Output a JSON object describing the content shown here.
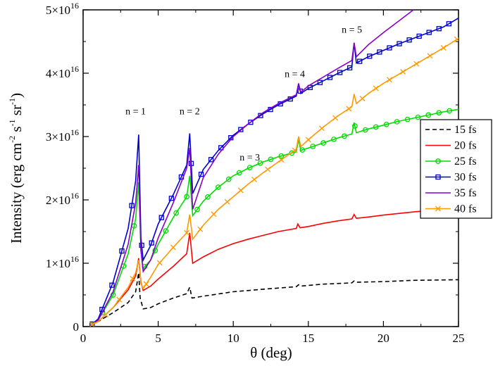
{
  "chart_data": {
    "type": "line",
    "title": "",
    "xlabel": "θ (deg)",
    "ylabel": {
      "main": "Intensity (erg cm",
      "e1": "-2",
      "p1": " s",
      "e2": "-1",
      "p2": " sr",
      "e3": "-1",
      "close": ")"
    },
    "xlim": [
      0,
      25
    ],
    "ylim": [
      0,
      5e+16
    ],
    "x_ticks": [
      0,
      5,
      10,
      15,
      20,
      25
    ],
    "y_ticks": [
      {
        "value": 0,
        "label": "0",
        "exp": ""
      },
      {
        "value": 1e+16,
        "label": "1×10",
        "exp": "16"
      },
      {
        "value": 2e+16,
        "label": "2×10",
        "exp": "16"
      },
      {
        "value": 3e+16,
        "label": "3×10",
        "exp": "16"
      },
      {
        "value": 4e+16,
        "label": "4×10",
        "exp": "16"
      },
      {
        "value": 5e+16,
        "label": "5×10",
        "exp": "16"
      }
    ],
    "legend_position": "right",
    "grid": false,
    "annotations": [
      {
        "text": "n = 1",
        "x": 3.5,
        "y": 3.35e+16
      },
      {
        "text": "n = 2",
        "x": 7.1,
        "y": 3.35e+16
      },
      {
        "text": "n = 3",
        "x": 11.1,
        "y": 2.62e+16
      },
      {
        "text": "n = 4",
        "x": 14.1,
        "y": 3.94e+16
      },
      {
        "text": "n = 5",
        "x": 17.9,
        "y": 4.64e+16
      }
    ],
    "series": [
      {
        "name": "15 fs",
        "color": "#000000",
        "dash": "6,4",
        "marker": "none",
        "points": [
          [
            0.5,
            200000000000000.0
          ],
          [
            1,
            800000000000000.0
          ],
          [
            2,
            2200000000000000.0
          ],
          [
            3,
            3800000000000000.0
          ],
          [
            3.5,
            5500000000000000.0
          ],
          [
            3.7,
            8500000000000000.0
          ],
          [
            3.8,
            4500000000000000.0
          ],
          [
            4,
            2800000000000000.0
          ],
          [
            4.5,
            3000000000000000.0
          ],
          [
            5,
            3600000000000000.0
          ],
          [
            6,
            4500000000000000.0
          ],
          [
            6.9,
            5200000000000000.0
          ],
          [
            7.1,
            6200000000000000.0
          ],
          [
            7.25,
            4500000000000000.0
          ],
          [
            8,
            4800000000000000.0
          ],
          [
            10,
            5500000000000000.0
          ],
          [
            12,
            5900000000000000.0
          ],
          [
            14.2,
            6300000000000000.0
          ],
          [
            14.35,
            6600000000000000.0
          ],
          [
            14.5,
            6400000000000000.0
          ],
          [
            16,
            6700000000000000.0
          ],
          [
            17.9,
            6900000000000000.0
          ],
          [
            18.05,
            7200000000000000.0
          ],
          [
            18.2,
            7000000000000000.0
          ],
          [
            20,
            7100000000000000.0
          ],
          [
            22,
            7300000000000000.0
          ],
          [
            25,
            7400000000000000.0
          ]
        ]
      },
      {
        "name": "20 fs",
        "color": "#ff0000",
        "dash": "",
        "marker": "none",
        "points": [
          [
            0.5,
            200000000000000.0
          ],
          [
            1,
            800000000000000.0
          ],
          [
            2,
            3000000000000000.0
          ],
          [
            3,
            5800000000000000.0
          ],
          [
            3.5,
            8000000000000000.0
          ],
          [
            3.7,
            1.08e+16
          ],
          [
            3.85,
            7000000000000000.0
          ],
          [
            4,
            5700000000000000.0
          ],
          [
            4.5,
            6400000000000000.0
          ],
          [
            5,
            7500000000000000.0
          ],
          [
            6,
            9500000000000000.0
          ],
          [
            6.9,
            1.15e+16
          ],
          [
            7.1,
            1.48e+16
          ],
          [
            7.3,
            1e+16
          ],
          [
            8,
            1.1e+16
          ],
          [
            9,
            1.22e+16
          ],
          [
            10,
            1.31e+16
          ],
          [
            11,
            1.38e+16
          ],
          [
            12,
            1.44e+16
          ],
          [
            13,
            1.5e+16
          ],
          [
            14.2,
            1.55e+16
          ],
          [
            14.3,
            1.62e+16
          ],
          [
            14.45,
            1.56e+16
          ],
          [
            15,
            1.58e+16
          ],
          [
            16,
            1.63e+16
          ],
          [
            17,
            1.67e+16
          ],
          [
            17.9,
            1.7e+16
          ],
          [
            18.05,
            1.77e+16
          ],
          [
            18.2,
            1.71e+16
          ],
          [
            19,
            1.73e+16
          ],
          [
            20,
            1.76e+16
          ],
          [
            22,
            1.81e+16
          ],
          [
            24,
            1.85e+16
          ],
          [
            25,
            1.87e+16
          ]
        ]
      },
      {
        "name": "25 fs",
        "color": "#00dd00",
        "dash": "",
        "marker": "circle",
        "points": [
          [
            0.5,
            200000000000000.0
          ],
          [
            1,
            1000000000000000.0
          ],
          [
            2,
            5000000000000000.0
          ],
          [
            3,
            1.15e+16
          ],
          [
            3.5,
            1.7e+16
          ],
          [
            3.7,
            2.28e+16
          ],
          [
            3.85,
            1.2e+16
          ],
          [
            4,
            9200000000000000.0
          ],
          [
            4.5,
            1.05e+16
          ],
          [
            5,
            1.3e+16
          ],
          [
            6,
            1.72e+16
          ],
          [
            6.9,
            2.05e+16
          ],
          [
            7.1,
            2.38e+16
          ],
          [
            7.3,
            1.75e+16
          ],
          [
            8,
            1.98e+16
          ],
          [
            9,
            2.2e+16
          ],
          [
            10,
            2.38e+16
          ],
          [
            11,
            2.5e+16
          ],
          [
            12,
            2.6e+16
          ],
          [
            13,
            2.68e+16
          ],
          [
            14.2,
            2.76e+16
          ],
          [
            14.35,
            2.96e+16
          ],
          [
            14.5,
            2.78e+16
          ],
          [
            15,
            2.82e+16
          ],
          [
            16,
            2.9e+16
          ],
          [
            17,
            2.98e+16
          ],
          [
            17.9,
            3.04e+16
          ],
          [
            18.05,
            3.22e+16
          ],
          [
            18.2,
            3.06e+16
          ],
          [
            19,
            3.12e+16
          ],
          [
            20,
            3.18e+16
          ],
          [
            21,
            3.24e+16
          ],
          [
            22,
            3.29e+16
          ],
          [
            23,
            3.34e+16
          ],
          [
            24,
            3.39e+16
          ],
          [
            25,
            3.43e+16
          ]
        ]
      },
      {
        "name": "30 fs",
        "color": "#0000cc",
        "dash": "",
        "marker": "square",
        "points": [
          [
            0.5,
            200000000000000.0
          ],
          [
            1,
            1200000000000000.0
          ],
          [
            2,
            7000000000000000.0
          ],
          [
            3,
            1.55e+16
          ],
          [
            3.5,
            2.3e+16
          ],
          [
            3.7,
            3.03e+16
          ],
          [
            3.85,
            1.4e+16
          ],
          [
            4,
            1.05e+16
          ],
          [
            4.5,
            1.28e+16
          ],
          [
            5,
            1.62e+16
          ],
          [
            6,
            2.08e+16
          ],
          [
            6.9,
            2.55e+16
          ],
          [
            7.1,
            3.05e+16
          ],
          [
            7.3,
            2.1e+16
          ],
          [
            8,
            2.48e+16
          ],
          [
            9,
            2.78e+16
          ],
          [
            10,
            3.02e+16
          ],
          [
            11,
            3.2e+16
          ],
          [
            12,
            3.36e+16
          ],
          [
            13,
            3.5e+16
          ],
          [
            14.2,
            3.64e+16
          ],
          [
            14.35,
            3.82e+16
          ],
          [
            14.5,
            3.68e+16
          ],
          [
            15,
            3.76e+16
          ],
          [
            16,
            3.88e+16
          ],
          [
            17,
            4e+16
          ],
          [
            17.9,
            4.1e+16
          ],
          [
            18.05,
            4.48e+16
          ],
          [
            18.2,
            4.16e+16
          ],
          [
            19,
            4.26e+16
          ],
          [
            20,
            4.36e+16
          ],
          [
            21,
            4.46e+16
          ],
          [
            22,
            4.55e+16
          ],
          [
            23,
            4.64e+16
          ],
          [
            24,
            4.73e+16
          ],
          [
            25,
            4.87e+16
          ]
        ]
      },
      {
        "name": "35 fs",
        "color": "#8800cc",
        "dash": "",
        "marker": "none",
        "points": [
          [
            0.5,
            200000000000000.0
          ],
          [
            1,
            1000000000000000.0
          ],
          [
            2,
            5500000000000000.0
          ],
          [
            3,
            1.3e+16
          ],
          [
            3.5,
            1.95e+16
          ],
          [
            3.7,
            2.55e+16
          ],
          [
            3.85,
            1.2e+16
          ],
          [
            4,
            8700000000000000.0
          ],
          [
            4.5,
            1.05e+16
          ],
          [
            5,
            1.4e+16
          ],
          [
            6,
            1.95e+16
          ],
          [
            6.9,
            2.5e+16
          ],
          [
            7.1,
            2.82e+16
          ],
          [
            7.3,
            1.85e+16
          ],
          [
            8,
            2.35e+16
          ],
          [
            9,
            2.72e+16
          ],
          [
            10,
            3e+16
          ],
          [
            11,
            3.2e+16
          ],
          [
            12,
            3.38e+16
          ],
          [
            13,
            3.52e+16
          ],
          [
            14.2,
            3.66e+16
          ],
          [
            14.35,
            3.84e+16
          ],
          [
            14.5,
            3.7e+16
          ],
          [
            15,
            3.8e+16
          ],
          [
            16,
            3.94e+16
          ],
          [
            17,
            4.08e+16
          ],
          [
            17.9,
            4.2e+16
          ],
          [
            18.05,
            4.48e+16
          ],
          [
            18.2,
            4.26e+16
          ],
          [
            19,
            4.45e+16
          ],
          [
            20,
            4.64e+16
          ],
          [
            21,
            4.82e+16
          ],
          [
            22,
            5e+16
          ]
        ]
      },
      {
        "name": "40 fs",
        "color": "#ff9900",
        "dash": "",
        "marker": "x",
        "points": [
          [
            0.5,
            200000000000000.0
          ],
          [
            1,
            800000000000000.0
          ],
          [
            2,
            3000000000000000.0
          ],
          [
            3,
            6200000000000000.0
          ],
          [
            3.5,
            8500000000000000.0
          ],
          [
            3.7,
            1.05e+16
          ],
          [
            3.85,
            6800000000000000.0
          ],
          [
            4,
            6000000000000000.0
          ],
          [
            4.5,
            7800000000000000.0
          ],
          [
            5,
            9800000000000000.0
          ],
          [
            6,
            1.25e+16
          ],
          [
            6.9,
            1.48e+16
          ],
          [
            7.1,
            1.77e+16
          ],
          [
            7.3,
            1.38e+16
          ],
          [
            8,
            1.6e+16
          ],
          [
            9,
            1.85e+16
          ],
          [
            10,
            2.05e+16
          ],
          [
            11,
            2.25e+16
          ],
          [
            12,
            2.43e+16
          ],
          [
            13,
            2.6e+16
          ],
          [
            14.2,
            2.8e+16
          ],
          [
            14.35,
            3e+16
          ],
          [
            14.5,
            2.84e+16
          ],
          [
            15,
            2.95e+16
          ],
          [
            16,
            3.15e+16
          ],
          [
            17,
            3.33e+16
          ],
          [
            17.9,
            3.47e+16
          ],
          [
            18.05,
            3.67e+16
          ],
          [
            18.2,
            3.52e+16
          ],
          [
            19,
            3.68e+16
          ],
          [
            20,
            3.84e+16
          ],
          [
            21,
            3.98e+16
          ],
          [
            22,
            4.12e+16
          ],
          [
            23,
            4.26e+16
          ],
          [
            24,
            4.4e+16
          ],
          [
            25,
            4.55e+16
          ]
        ]
      }
    ]
  }
}
